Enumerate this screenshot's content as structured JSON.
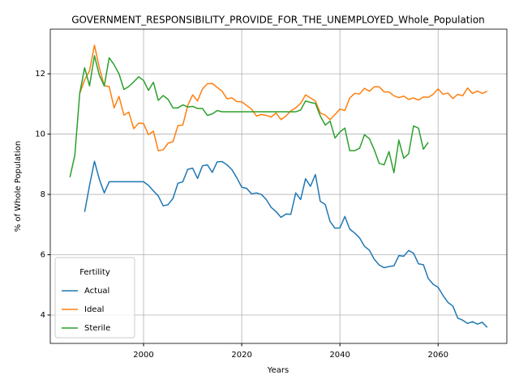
{
  "chart_data": {
    "type": "line",
    "title": "GOVERNMENT_RESPONSIBILITY_PROVIDE_FOR_THE_UNEMPLOYED_Whole_Population",
    "xlabel": "Years",
    "ylabel": "% of Whole Population",
    "x": [
      1985,
      1986,
      1987,
      1988,
      1989,
      1990,
      1991,
      1992,
      1993,
      1994,
      1995,
      1996,
      1997,
      1998,
      1999,
      2000,
      2001,
      2002,
      2003,
      2004,
      2005,
      2006,
      2007,
      2008,
      2009,
      2010,
      2011,
      2012,
      2013,
      2014,
      2015,
      2016,
      2017,
      2018,
      2019,
      2020,
      2021,
      2022,
      2023,
      2024,
      2025,
      2026,
      2027,
      2028,
      2029,
      2030,
      2031,
      2032,
      2033,
      2034,
      2035,
      2036,
      2037,
      2038,
      2039,
      2040,
      2041,
      2042,
      2043,
      2044,
      2045,
      2046,
      2047,
      2048,
      2049,
      2050,
      2051,
      2052,
      2053,
      2054,
      2055,
      2056,
      2057,
      2058,
      2059,
      2060,
      2061,
      2062,
      2063,
      2064,
      2065,
      2066,
      2067,
      2068,
      2069,
      2070
    ],
    "series": [
      {
        "name": "Actual",
        "color": "#1f77b4",
        "values": [
          null,
          null,
          null,
          7.42,
          8.3,
          9.1,
          8.5,
          8.05,
          8.42,
          8.42,
          8.42,
          8.42,
          8.42,
          8.42,
          8.42,
          8.42,
          8.3,
          8.12,
          7.95,
          7.62,
          7.66,
          7.87,
          8.37,
          8.42,
          8.83,
          8.87,
          8.53,
          8.95,
          8.98,
          8.73,
          9.08,
          9.09,
          8.98,
          8.82,
          8.55,
          8.24,
          8.2,
          8.02,
          8.05,
          8.0,
          7.83,
          7.57,
          7.43,
          7.24,
          7.35,
          7.34,
          8.05,
          7.83,
          8.52,
          8.27,
          8.66,
          7.77,
          7.67,
          7.1,
          6.88,
          6.89,
          7.27,
          6.85,
          6.72,
          6.56,
          6.28,
          6.15,
          5.85,
          5.66,
          5.57,
          5.61,
          5.63,
          5.97,
          5.95,
          6.14,
          6.05,
          5.7,
          5.67,
          5.21,
          5.02,
          4.92,
          4.65,
          4.42,
          4.3,
          3.9,
          3.83,
          3.72,
          3.78,
          3.7,
          3.76,
          3.59
        ]
      },
      {
        "name": "Ideal",
        "color": "#ff7f0e",
        "values": [
          null,
          null,
          11.35,
          11.8,
          12.1,
          12.95,
          12.2,
          11.6,
          11.58,
          10.87,
          11.25,
          10.63,
          10.73,
          10.18,
          10.36,
          10.35,
          9.98,
          10.1,
          9.45,
          9.48,
          9.7,
          9.75,
          10.28,
          10.3,
          10.95,
          11.3,
          11.1,
          11.5,
          11.67,
          11.68,
          11.55,
          11.42,
          11.17,
          11.2,
          11.08,
          11.07,
          10.95,
          10.83,
          10.6,
          10.65,
          10.62,
          10.57,
          10.7,
          10.48,
          10.6,
          10.77,
          10.87,
          11.02,
          11.3,
          11.2,
          11.1,
          10.7,
          10.63,
          10.48,
          10.65,
          10.83,
          10.78,
          11.2,
          11.35,
          11.33,
          11.52,
          11.42,
          11.57,
          11.57,
          11.4,
          11.4,
          11.27,
          11.21,
          11.26,
          11.15,
          11.2,
          11.13,
          11.23,
          11.22,
          11.32,
          11.5,
          11.32,
          11.36,
          11.18,
          11.32,
          11.27,
          11.53,
          11.35,
          11.43,
          11.35,
          11.42
        ]
      },
      {
        "name": "Sterile",
        "color": "#2ca02c",
        "values": [
          8.57,
          9.3,
          11.35,
          12.2,
          11.6,
          12.6,
          11.95,
          11.6,
          12.53,
          12.3,
          12.0,
          11.48,
          11.58,
          11.73,
          11.9,
          11.78,
          11.45,
          11.72,
          11.12,
          11.28,
          11.15,
          10.87,
          10.87,
          10.97,
          10.9,
          10.92,
          10.85,
          10.85,
          10.62,
          10.67,
          10.78,
          10.74,
          10.74,
          10.74,
          10.74,
          10.74,
          10.74,
          10.74,
          10.74,
          10.74,
          10.74,
          10.74,
          10.74,
          10.74,
          10.74,
          10.74,
          10.74,
          10.8,
          11.1,
          11.05,
          11.02,
          10.6,
          10.3,
          10.43,
          9.87,
          10.07,
          10.2,
          9.45,
          9.45,
          9.53,
          9.98,
          9.85,
          9.48,
          9.03,
          8.98,
          9.42,
          8.72,
          9.8,
          9.2,
          9.35,
          10.27,
          10.2,
          9.5,
          9.73,
          null,
          null,
          null,
          null,
          null,
          null,
          null,
          null,
          null,
          null,
          null,
          null
        ]
      }
    ],
    "xlim": [
      1981,
      2074
    ],
    "xticks": [
      2000,
      2020,
      2040,
      2060
    ],
    "ylim": [
      3.06,
      13.48
    ],
    "yticks": [
      4,
      6,
      8,
      10,
      12
    ],
    "grid": true,
    "legend_title": "Fertility",
    "legend_position": "lower left"
  }
}
